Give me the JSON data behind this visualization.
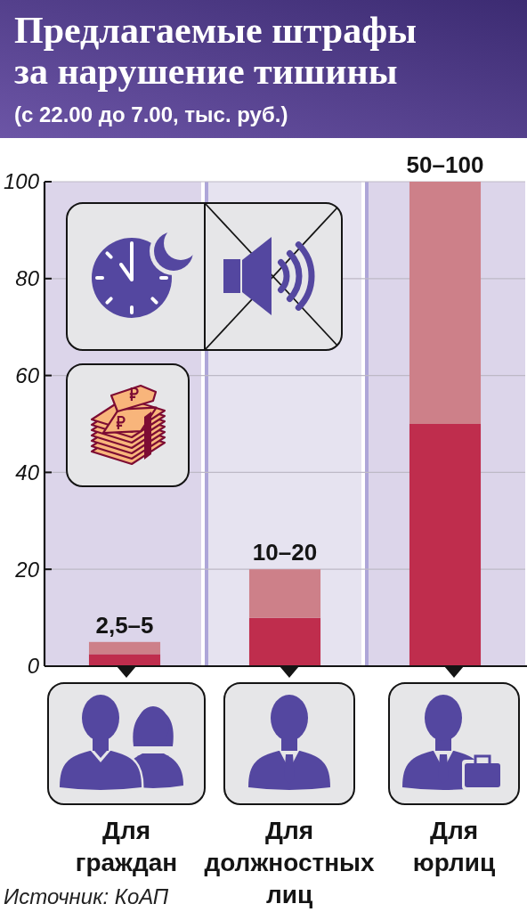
{
  "chart_data": {
    "type": "bar",
    "title": "Предлагаемые штрафы за нарушение тишины",
    "subtitle": "(с 22.00 до 7.00, тыс. руб.)",
    "categories": [
      "Для граждан",
      "Для должностных лиц",
      "Для юрлиц"
    ],
    "stacked": true,
    "series": [
      {
        "color": "#bf2d4d",
        "values": [
          2.5,
          10,
          50
        ]
      },
      {
        "color": "#cd8089",
        "values": [
          2.5,
          10,
          50
        ],
        "value_labels": [
          "2,5–5",
          "10–20",
          "50–100"
        ]
      }
    ],
    "ylim": [
      0,
      100
    ],
    "yticks": [
      0,
      20,
      40,
      60,
      80,
      100
    ],
    "grid": "y",
    "annotations": [
      "Источник: КоАП"
    ]
  }
}
